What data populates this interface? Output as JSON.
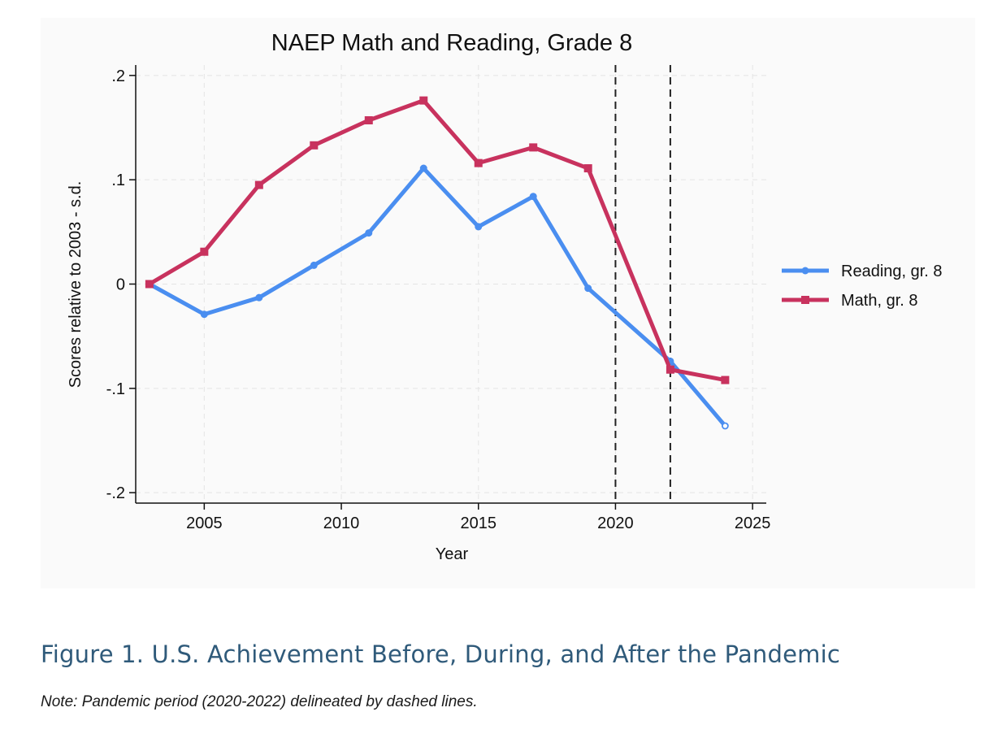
{
  "chart_data": {
    "type": "line",
    "title": "NAEP Math and Reading, Grade 8",
    "xlabel": "Year",
    "ylabel": "Scores relative to 2003 - s.d.",
    "xlim": [
      2002.5,
      2025.5
    ],
    "ylim": [
      -0.21,
      0.21
    ],
    "x_ticks": [
      2005,
      2010,
      2015,
      2020,
      2025
    ],
    "x_tick_labels": [
      "2005",
      "2010",
      "2015",
      "2020",
      "2025"
    ],
    "y_ticks": [
      -0.2,
      -0.1,
      0,
      0.1,
      0.2
    ],
    "y_tick_labels": [
      "-.2",
      "-.1",
      "0",
      ".1",
      ".2"
    ],
    "grid": true,
    "legend_position": "right",
    "vertical_lines": [
      2020,
      2022
    ],
    "series": [
      {
        "name": "Reading, gr. 8",
        "color": "#4a8ef0",
        "marker": "circle",
        "x": [
          2003,
          2005,
          2007,
          2009,
          2011,
          2013,
          2015,
          2017,
          2019,
          2022,
          2024
        ],
        "y": [
          0,
          -0.029,
          -0.013,
          0.018,
          0.049,
          0.111,
          0.055,
          0.084,
          -0.004,
          -0.074,
          -0.136
        ]
      },
      {
        "name": "Math, gr. 8",
        "color": "#c8325e",
        "marker": "square",
        "x": [
          2003,
          2005,
          2007,
          2009,
          2011,
          2013,
          2015,
          2017,
          2019,
          2022,
          2024
        ],
        "y": [
          0,
          0.031,
          0.095,
          0.133,
          0.157,
          0.176,
          0.116,
          0.131,
          0.111,
          -0.082,
          -0.092
        ]
      }
    ]
  },
  "caption": "Figure 1.  U.S. Achievement Before, During, and After the Pandemic",
  "note": "Note: Pandemic period (2020-2022) delineated by dashed lines."
}
